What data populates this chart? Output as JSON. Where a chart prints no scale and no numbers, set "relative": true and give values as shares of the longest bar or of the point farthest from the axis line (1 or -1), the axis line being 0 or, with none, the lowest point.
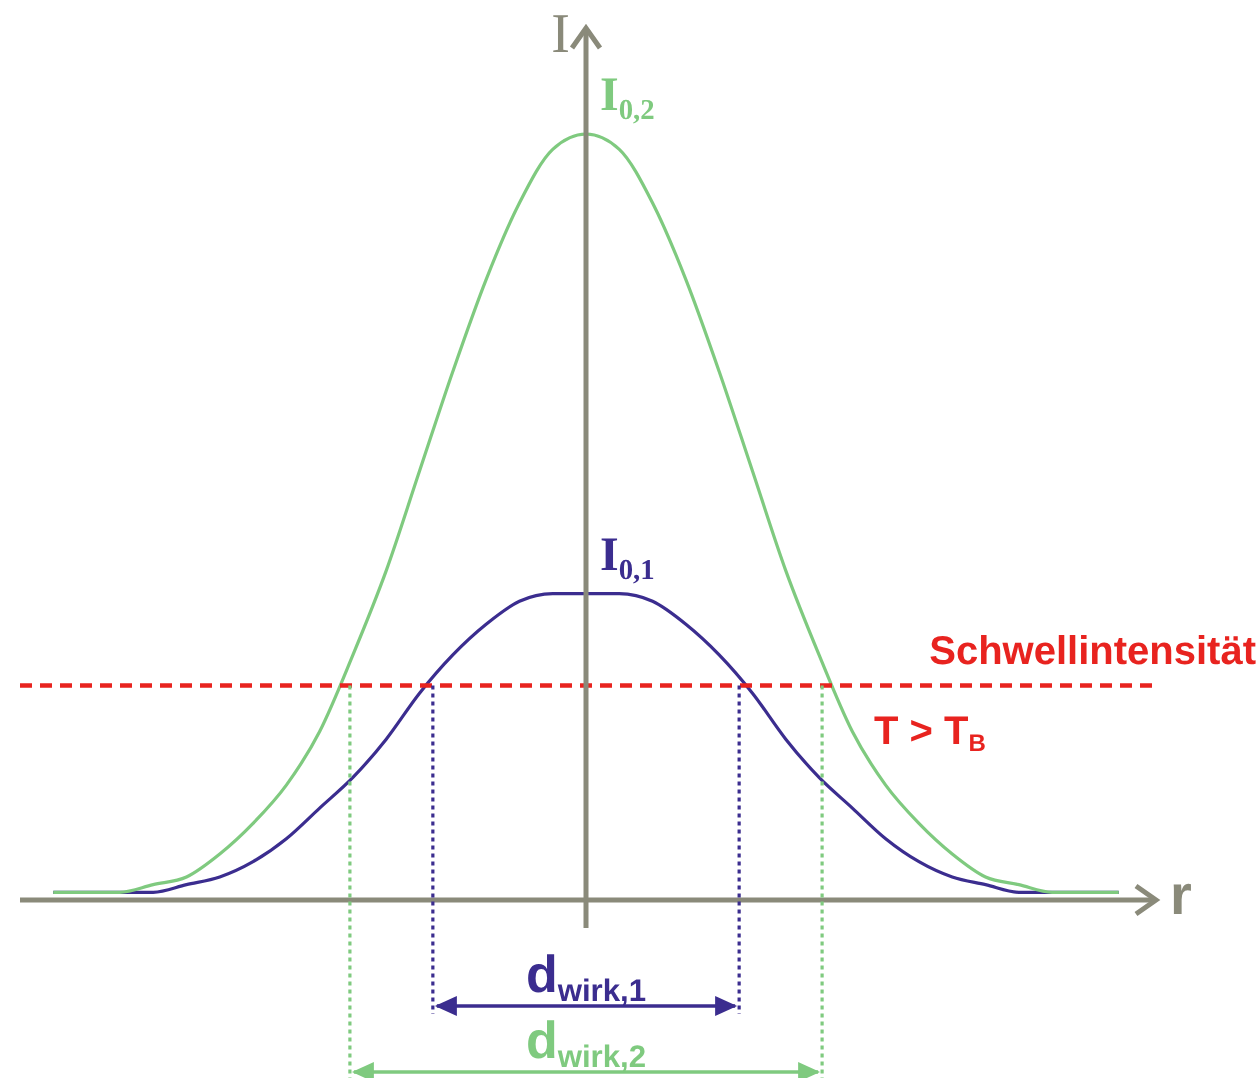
{
  "chart_data": {
    "type": "line",
    "relative": true,
    "xlabel": "r",
    "ylabel": "I",
    "categories": [
      null,
      null,
      null,
      null,
      null,
      null,
      null,
      null,
      null,
      null,
      null,
      null,
      null,
      null,
      null,
      null,
      null,
      null,
      null,
      null,
      null,
      null,
      null,
      null,
      null,
      null,
      null,
      null,
      null,
      null,
      null,
      null,
      null
    ],
    "series": [
      {
        "name": "I$_{0,1}$",
        "color": "#3b2d8f",
        "values": [
          0.01,
          0.01,
          0.01,
          0.01,
          0.02,
          0.03,
          0.05,
          0.08,
          0.12,
          0.16,
          0.21,
          0.27,
          0.32,
          0.36,
          0.39,
          0.4,
          0.4,
          0.4,
          0.39,
          0.36,
          0.32,
          0.27,
          0.21,
          0.16,
          0.12,
          0.08,
          0.05,
          0.03,
          0.02,
          0.01,
          0.01,
          0.01,
          0.01
        ]
      },
      {
        "name": "I$_{0,2}$",
        "color": "#7fca7f",
        "values": [
          0.01,
          0.01,
          0.01,
          0.02,
          0.03,
          0.06,
          0.1,
          0.15,
          0.22,
          0.32,
          0.43,
          0.56,
          0.69,
          0.81,
          0.91,
          0.98,
          1,
          0.98,
          0.91,
          0.81,
          0.69,
          0.56,
          0.43,
          0.32,
          0.22,
          0.15,
          0.1,
          0.06,
          0.03,
          0.02,
          0.01,
          0.01,
          0.01
        ]
      }
    ],
    "ref_lines": [
      {
        "axis": "y",
        "value": 0.28,
        "label": "Schwellintensität",
        "color": "#e8231f",
        "line_style": "dashed"
      }
    ],
    "annotations": [
      "T > T$_{B}$",
      "d$_{wirk,1}$",
      "d$_{wirk,2}$"
    ]
  }
}
